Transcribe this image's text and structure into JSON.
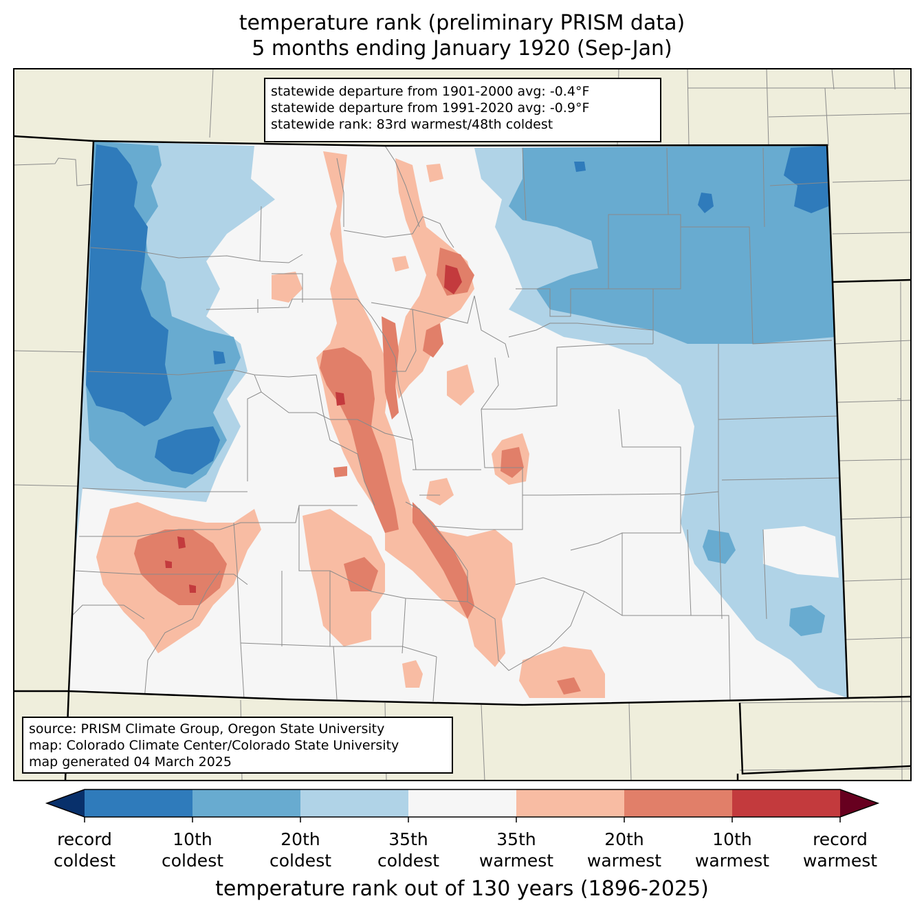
{
  "title": {
    "line1": "temperature rank (preliminary PRISM data)",
    "line2": "5 months ending January 1920 (Sep-Jan)"
  },
  "stats": {
    "line1": "statewide departure from 1901-2000 avg: -0.4°F",
    "line2": "statewide departure from 1991-2020 avg: -0.9°F",
    "line3": "statewide rank: 83rd warmest/48th coldest"
  },
  "source": {
    "line1": "source: PRISM Climate Group, Oregon State University",
    "line2": "map: Colorado Climate Center/Colorado State University",
    "line3": "map generated 04 March 2025"
  },
  "colorbar": {
    "label": "temperature rank out of 130 years (1896-2025)",
    "ticks": [
      {
        "line1": "record",
        "line2": "coldest"
      },
      {
        "line1": "10th",
        "line2": "coldest"
      },
      {
        "line1": "20th",
        "line2": "coldest"
      },
      {
        "line1": "35th",
        "line2": "coldest"
      },
      {
        "line1": "35th",
        "line2": "warmest"
      },
      {
        "line1": "20th",
        "line2": "warmest"
      },
      {
        "line1": "10th",
        "line2": "warmest"
      },
      {
        "line1": "record",
        "line2": "warmest"
      }
    ],
    "colors": [
      "#08306b",
      "#2f7bbb",
      "#68abd0",
      "#b0d3e7",
      "#f6f6f6",
      "#f8bca3",
      "#e17f69",
      "#c33a3d",
      "#67001f"
    ]
  },
  "map_colors": {
    "land_outside": "#efeedc",
    "state_fill": "#f6f6f6"
  }
}
